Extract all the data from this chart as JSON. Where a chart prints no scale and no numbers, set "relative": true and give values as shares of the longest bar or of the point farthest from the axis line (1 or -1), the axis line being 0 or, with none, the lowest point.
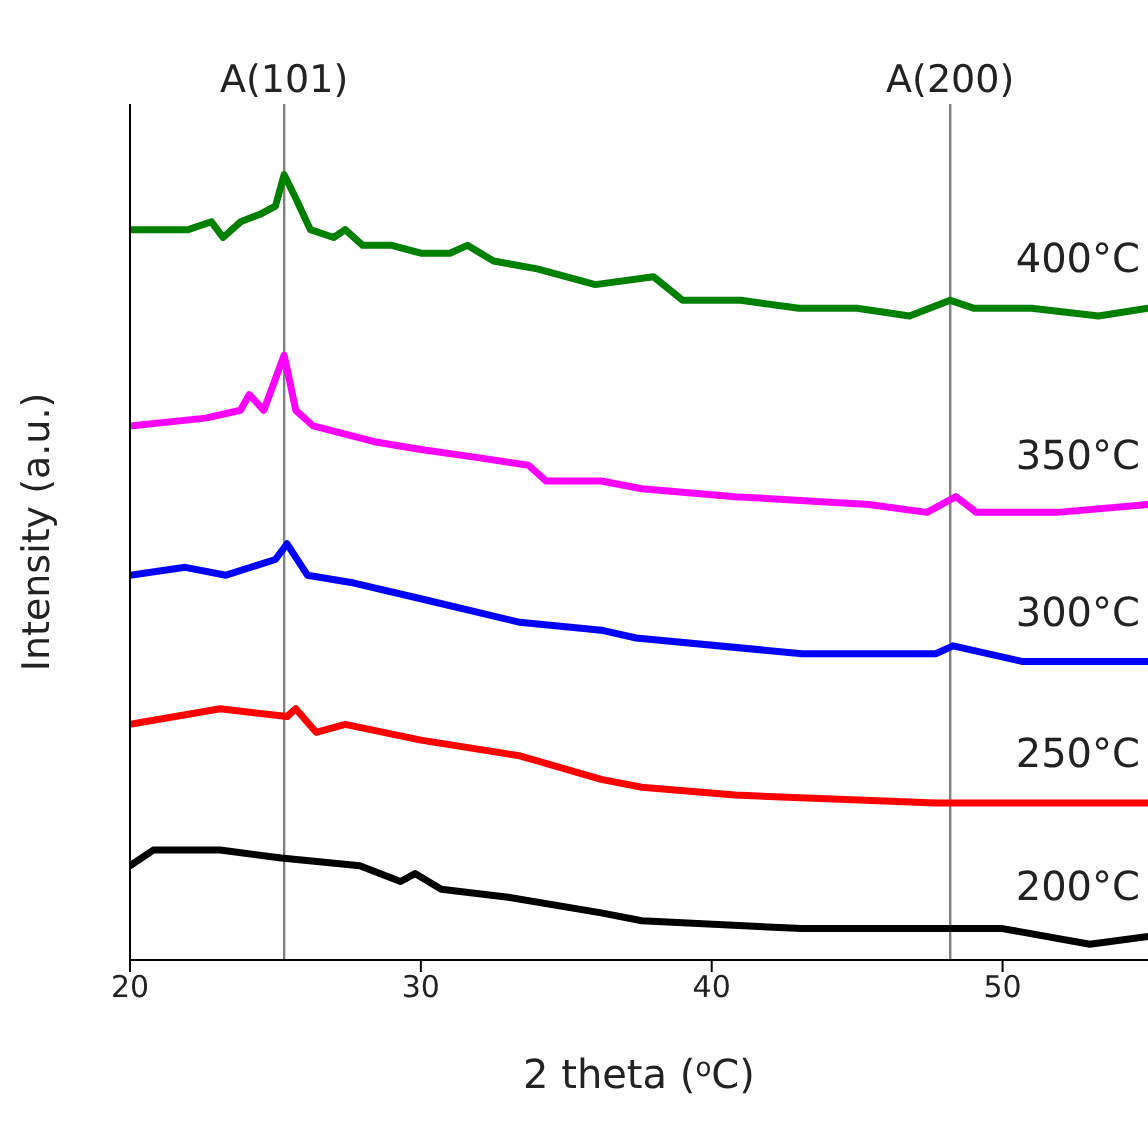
{
  "chart_data": {
    "type": "line",
    "relative": true,
    "xlabel": "2 theta ($^{o}$C)",
    "ylabel": "Intensity (a.u.)",
    "xlim": [
      20,
      55
    ],
    "xticks": [
      20,
      30,
      40,
      50
    ],
    "grid": false,
    "legend": false,
    "marker": "none",
    "line_style": "solid",
    "ref_lines": [
      {
        "axis": "x",
        "value": 25.3,
        "label": "A(101)",
        "color": "#808080"
      },
      {
        "axis": "x",
        "value": 48.2,
        "label": "A(200)",
        "color": "#808080"
      }
    ],
    "series": [
      {
        "name": "200°C",
        "color": "#000000",
        "x": [
          20,
          20.8,
          23.1,
          25.2,
          27.9,
          29.3,
          29.8,
          30.7,
          33,
          36.2,
          37.6,
          43.1,
          50,
          53,
          55
        ],
        "values": [
          0.12,
          0.14,
          0.14,
          0.13,
          0.12,
          0.1,
          0.11,
          0.09,
          0.08,
          0.06,
          0.05,
          0.04,
          0.04,
          0.02,
          0.03
        ]
      },
      {
        "name": "250°C",
        "color": "#ff0000",
        "x": [
          20,
          23.1,
          25.4,
          25.7,
          26.4,
          27.4,
          30,
          33.4,
          36.2,
          37.6,
          40.8,
          47.7,
          55
        ],
        "values": [
          0.3,
          0.32,
          0.31,
          0.32,
          0.29,
          0.3,
          0.28,
          0.26,
          0.23,
          0.22,
          0.21,
          0.2,
          0.2
        ]
      },
      {
        "name": "300°C",
        "color": "#0000ff",
        "x": [
          20,
          21.9,
          23.3,
          25,
          25.4,
          26.1,
          27.7,
          30,
          33.4,
          36.2,
          37.4,
          43.1,
          47.7,
          48.3,
          50.7,
          55
        ],
        "values": [
          0.49,
          0.5,
          0.49,
          0.51,
          0.53,
          0.49,
          0.48,
          0.46,
          0.43,
          0.42,
          0.41,
          0.39,
          0.39,
          0.4,
          0.38,
          0.38
        ]
      },
      {
        "name": "350°C",
        "color": "#ff00ff",
        "x": [
          20,
          22.6,
          23.8,
          24.1,
          24.6,
          25.3,
          25.7,
          26.3,
          28.4,
          30,
          31.9,
          33.7,
          34.3,
          36.2,
          37.6,
          40.8,
          45.4,
          47.4,
          48.4,
          49.1,
          51.9,
          55
        ],
        "values": [
          0.68,
          0.69,
          0.7,
          0.72,
          0.7,
          0.77,
          0.7,
          0.68,
          0.66,
          0.65,
          0.64,
          0.63,
          0.61,
          0.61,
          0.6,
          0.59,
          0.58,
          0.57,
          0.59,
          0.57,
          0.57,
          0.58
        ]
      },
      {
        "name": "400°C",
        "color": "#008000",
        "x": [
          20,
          21,
          22,
          22.8,
          23.2,
          23.8,
          24.5,
          25,
          25.3,
          25.7,
          26.2,
          27,
          27.4,
          28,
          29,
          30,
          31,
          31.6,
          32.5,
          34,
          36,
          38,
          39,
          41,
          43,
          45,
          46.8,
          48.2,
          49,
          51,
          53.3,
          55
        ],
        "values": [
          0.93,
          0.93,
          0.93,
          0.94,
          0.92,
          0.94,
          0.95,
          0.96,
          1,
          0.97,
          0.93,
          0.92,
          0.93,
          0.91,
          0.91,
          0.9,
          0.9,
          0.91,
          0.89,
          0.88,
          0.86,
          0.87,
          0.84,
          0.84,
          0.83,
          0.83,
          0.82,
          0.84,
          0.83,
          0.83,
          0.82,
          0.83
        ]
      }
    ]
  }
}
